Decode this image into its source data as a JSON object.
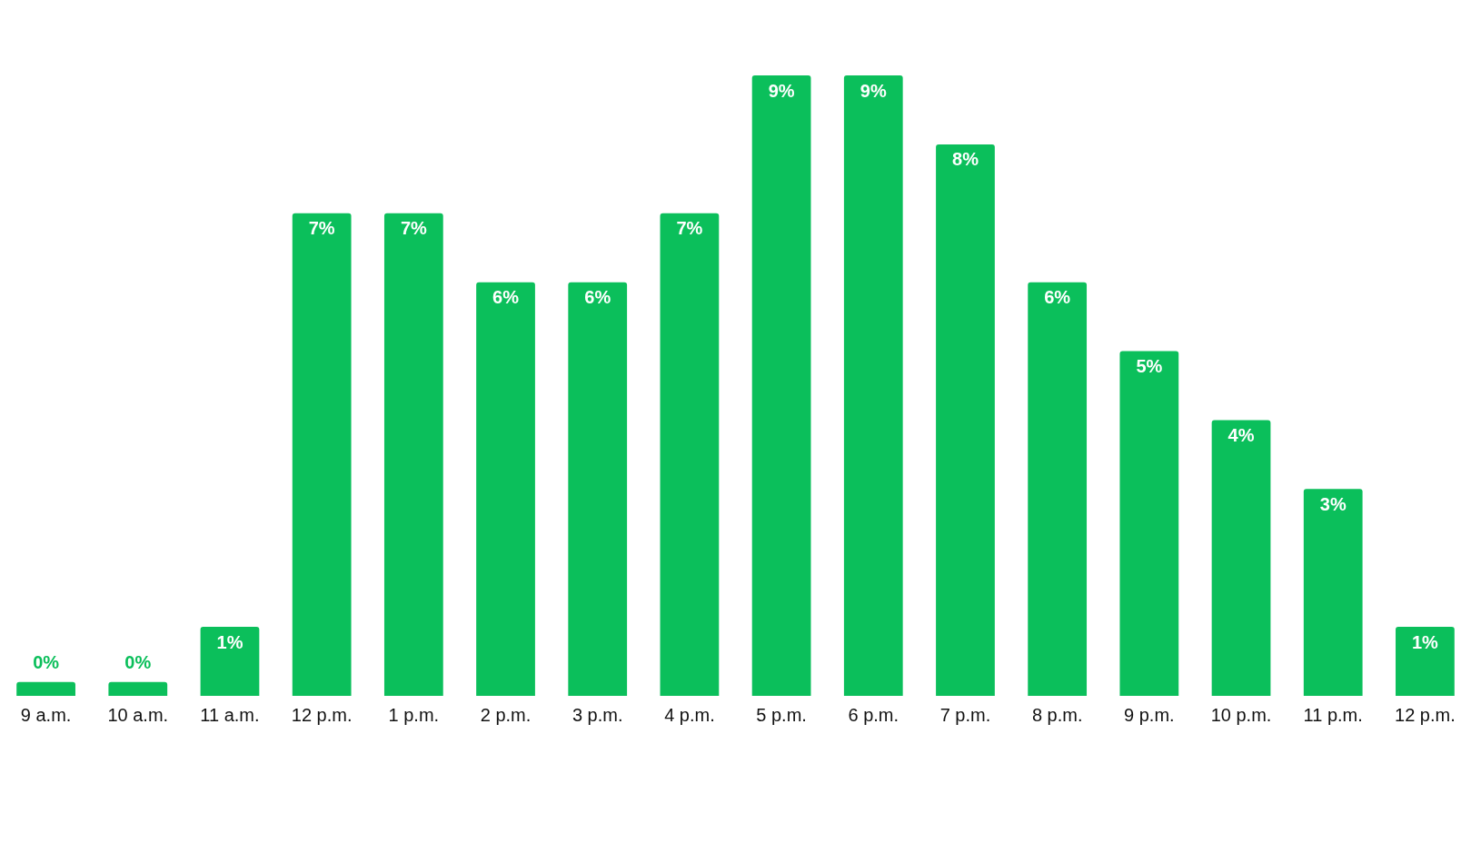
{
  "chart_data": {
    "type": "bar",
    "categories": [
      "9 a.m.",
      "10 a.m.",
      "11 a.m.",
      "12 p.m.",
      "1 p.m.",
      "2 p.m.",
      "3 p.m.",
      "4 p.m.",
      "5 p.m.",
      "6 p.m.",
      "7 p.m.",
      "8 p.m.",
      "9 p.m.",
      "10 p.m.",
      "11 p.m.",
      "12 p.m."
    ],
    "values": [
      0.2,
      0.2,
      1,
      7,
      7,
      6,
      6,
      7,
      9,
      9,
      8,
      6,
      5,
      4,
      3,
      1
    ],
    "value_labels": [
      "0%",
      "0%",
      "1%",
      "7%",
      "7%",
      "6%",
      "6%",
      "7%",
      "9%",
      "9%",
      "8%",
      "6%",
      "5%",
      "4%",
      "3%",
      "1%"
    ],
    "color": "#0bbf5b",
    "tick_labels": "x",
    "grid": false,
    "legend": false
  }
}
